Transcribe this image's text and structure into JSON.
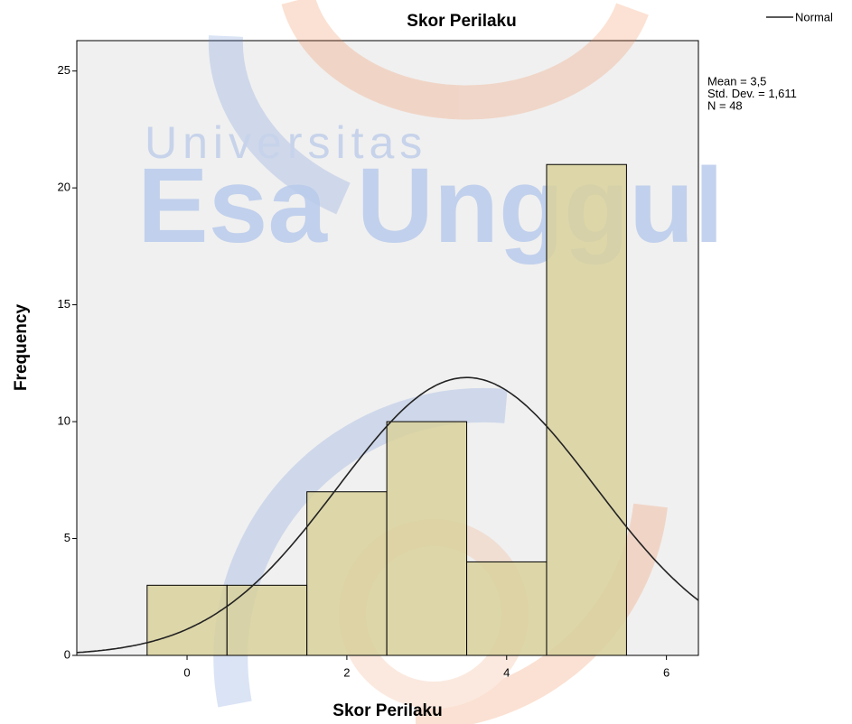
{
  "chart_data": {
    "type": "histogram",
    "title": "Skor Perilaku",
    "x_label": "Skor Perilaku",
    "y_label": "Frequency",
    "watermark": [
      "Universitas",
      "Esa Unggul"
    ],
    "legend": "Normal",
    "legend_position": "top-right",
    "bins": [
      -0.5,
      0.5,
      1.5,
      2.5,
      3.5,
      4.5,
      5.5
    ],
    "values": [
      3,
      3,
      7,
      10,
      4,
      21
    ],
    "color": "#d9d19c",
    "curve_color": "#222222",
    "stats": [
      {
        "value": 3.5,
        "label": "Mean = 3,5"
      },
      {
        "value": 1.611,
        "label": "Std. Dev. = 1,611"
      },
      {
        "value": 48,
        "label": "N = 48"
      }
    ],
    "xlim": [
      -1.38,
      6.4
    ],
    "ylim": [
      0,
      26.3
    ],
    "xticks": [
      0,
      2,
      4,
      6
    ],
    "yticks": [
      0,
      5,
      10,
      15,
      20,
      25
    ]
  }
}
